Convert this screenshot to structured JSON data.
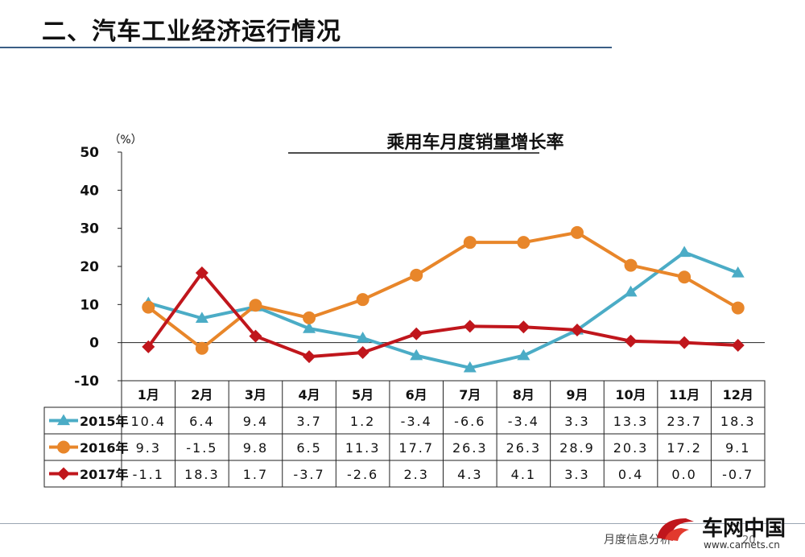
{
  "page": {
    "title": "二、汽车工业经济运行情况",
    "footer_text": "月度信息分析",
    "page_number": "20",
    "brand_name": "车网中国",
    "brand_url": "www.carnets.cn"
  },
  "chart_data": {
    "type": "line",
    "title": "乘用车月度销量增长率",
    "ylabel": "（%）",
    "xlabel": "",
    "ylim": [
      -10,
      50
    ],
    "yticks": [
      -10,
      0,
      10,
      20,
      30,
      40,
      50
    ],
    "categories": [
      "1月",
      "2月",
      "3月",
      "4月",
      "5月",
      "6月",
      "7月",
      "8月",
      "9月",
      "10月",
      "11月",
      "12月"
    ],
    "legend_position": "table-left",
    "series": [
      {
        "name": "2015年",
        "color": "#4bacc6",
        "marker": "triangle",
        "values": [
          10.4,
          6.4,
          9.4,
          3.7,
          1.2,
          -3.4,
          -6.6,
          -3.4,
          3.3,
          13.3,
          23.7,
          18.3
        ],
        "labels": [
          "10.4",
          "6.4",
          "9.4",
          "3.7",
          "1.2",
          "-3.4",
          "-6.6",
          "-3.4",
          "3.3",
          "13.3",
          "23.7",
          "18.3"
        ]
      },
      {
        "name": "2016年",
        "color": "#e8862a",
        "marker": "circle",
        "values": [
          9.3,
          -1.5,
          9.8,
          6.5,
          11.3,
          17.7,
          26.3,
          26.3,
          28.9,
          20.3,
          17.2,
          9.1
        ],
        "labels": [
          "9.3",
          "-1.5",
          "9.8",
          "6.5",
          "11.3",
          "17.7",
          "26.3",
          "26.3",
          "28.9",
          "20.3",
          "17.2",
          "9.1"
        ]
      },
      {
        "name": "2017年",
        "color": "#c0161c",
        "marker": "diamond",
        "values": [
          -1.1,
          18.3,
          1.7,
          -3.7,
          -2.6,
          2.3,
          4.3,
          4.1,
          3.3,
          0.4,
          0.0,
          -0.7
        ],
        "labels": [
          "-1.1",
          "18.3",
          "1.7",
          "-3.7",
          "-2.6",
          "2.3",
          "4.3",
          "4.1",
          "3.3",
          "0.4",
          "0.0",
          "-0.7"
        ]
      }
    ]
  }
}
